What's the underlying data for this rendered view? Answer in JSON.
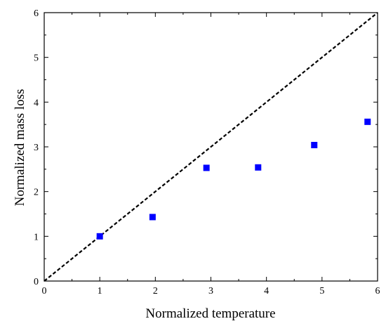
{
  "chart_data": {
    "type": "scatter",
    "xlabel": "Normalized temperature",
    "ylabel": "Normalized mass loss",
    "xlim": [
      0,
      6
    ],
    "ylim": [
      0,
      6
    ],
    "xticks": [
      "0",
      "1",
      "2",
      "3",
      "4",
      "5",
      "6"
    ],
    "yticks": [
      "0",
      "1",
      "2",
      "3",
      "4",
      "5",
      "6"
    ],
    "grid": false,
    "marker_color": "#0000ff",
    "reference_line": {
      "style": "dashed",
      "color": "#000000",
      "from": [
        0,
        0
      ],
      "to": [
        6,
        6
      ]
    },
    "series": [
      {
        "points": [
          {
            "x": 1.0,
            "y": 1.0
          },
          {
            "x": 1.95,
            "y": 1.43
          },
          {
            "x": 2.92,
            "y": 2.53
          },
          {
            "x": 3.85,
            "y": 2.54
          },
          {
            "x": 4.86,
            "y": 3.04
          },
          {
            "x": 5.82,
            "y": 3.56
          }
        ]
      }
    ]
  }
}
